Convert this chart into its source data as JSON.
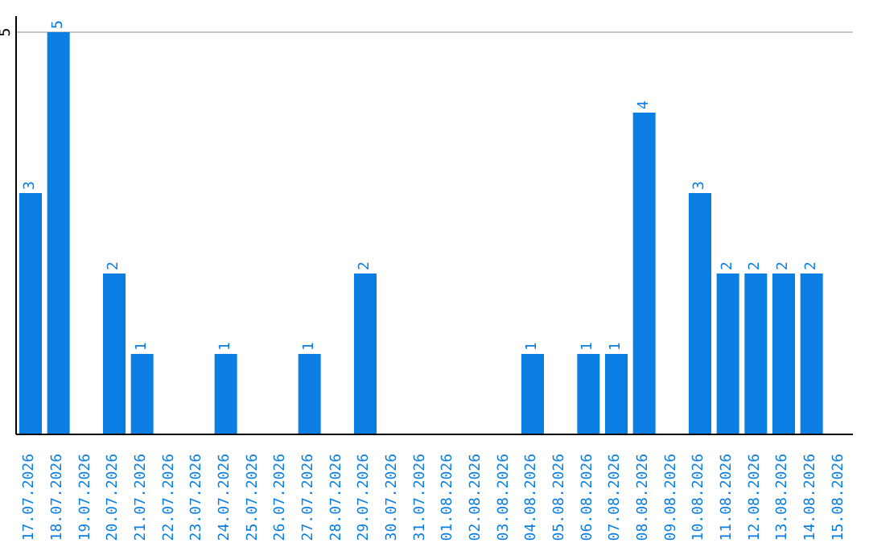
{
  "chart_data": {
    "type": "bar",
    "categories": [
      "17.07.2026",
      "18.07.2026",
      "19.07.2026",
      "20.07.2026",
      "21.07.2026",
      "22.07.2026",
      "23.07.2026",
      "24.07.2026",
      "25.07.2026",
      "26.07.2026",
      "27.07.2026",
      "28.07.2026",
      "29.07.2026",
      "30.07.2026",
      "31.07.2026",
      "01.08.2026",
      "02.08.2026",
      "03.08.2026",
      "04.08.2026",
      "05.08.2026",
      "06.08.2026",
      "07.08.2026",
      "08.08.2026",
      "09.08.2026",
      "10.08.2026",
      "11.08.2026",
      "12.08.2026",
      "13.08.2026",
      "14.08.2026",
      "15.08.2026"
    ],
    "values": [
      3,
      5,
      0,
      2,
      1,
      0,
      0,
      1,
      0,
      0,
      1,
      0,
      2,
      0,
      0,
      0,
      0,
      0,
      1,
      0,
      1,
      1,
      4,
      0,
      3,
      2,
      2,
      2,
      2,
      0
    ],
    "value_labels": [
      "3",
      "5",
      null,
      "2",
      "1",
      null,
      null,
      "1",
      null,
      null,
      "1",
      null,
      "2",
      null,
      null,
      null,
      null,
      null,
      "1",
      null,
      "1",
      "1",
      "4",
      null,
      "3",
      "2",
      "2",
      "2",
      "2",
      null
    ],
    "color": "#0a7ee3",
    "ylim": [
      0,
      5.2
    ],
    "yticks": [
      5
    ],
    "grid": "y"
  }
}
